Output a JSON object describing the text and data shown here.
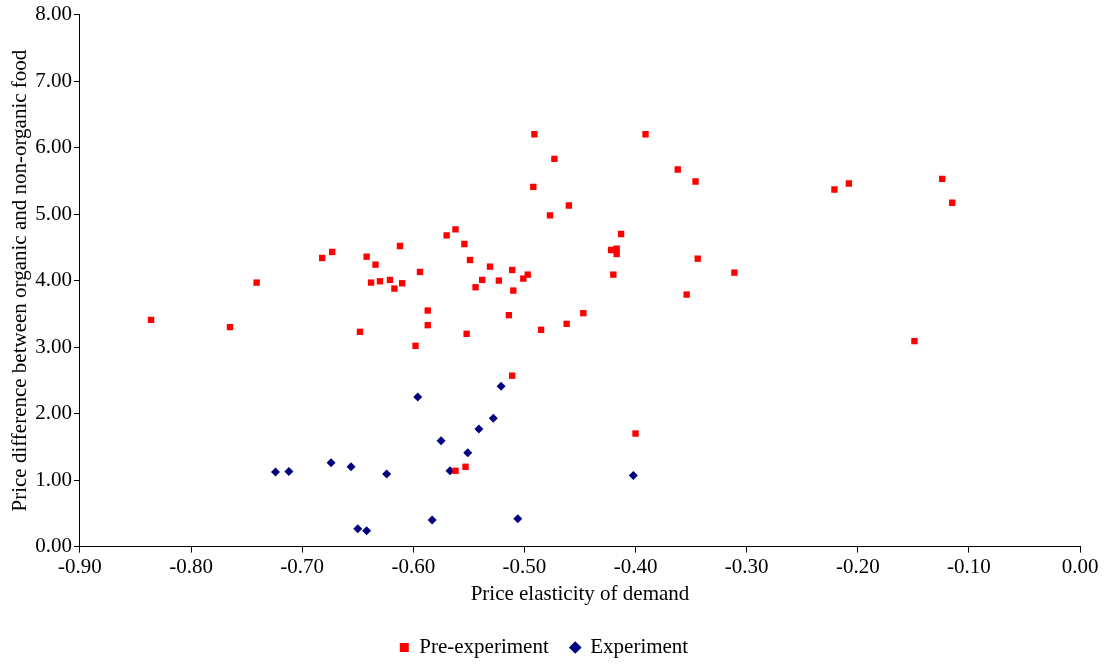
{
  "chart_data": {
    "type": "scatter",
    "xlabel": "Price elasticity of demand",
    "ylabel": "Price difference between organic and non-organic food",
    "legend": "bottom",
    "grid": false,
    "xlim": [
      -0.9,
      0
    ],
    "xticks": [
      {
        "value": -0.9,
        "label": "-0.90"
      },
      {
        "value": -0.8,
        "label": "-0.80"
      },
      {
        "value": -0.7,
        "label": "-0.70"
      },
      {
        "value": -0.6,
        "label": "-0.60"
      },
      {
        "value": -0.5,
        "label": "-0.50"
      },
      {
        "value": -0.4,
        "label": "-0.40"
      },
      {
        "value": -0.3,
        "label": "-0.30"
      },
      {
        "value": -0.2,
        "label": "-0.20"
      },
      {
        "value": -0.1,
        "label": "-0.10"
      },
      {
        "value": 0,
        "label": "0.00"
      }
    ],
    "ylim": [
      0,
      8
    ],
    "yticks": [
      {
        "value": 0,
        "label": "0.00"
      },
      {
        "value": 1,
        "label": "1.00"
      },
      {
        "value": 2,
        "label": "2.00"
      },
      {
        "value": 3,
        "label": "3.00"
      },
      {
        "value": 4,
        "label": "4.00"
      },
      {
        "value": 5,
        "label": "5.00"
      },
      {
        "value": 6,
        "label": "6.00"
      },
      {
        "value": 7,
        "label": "7.00"
      },
      {
        "value": 8,
        "label": "8.00"
      }
    ],
    "series": [
      {
        "name": "Pre-experiment",
        "color": "#ff0000",
        "marker": "square",
        "x": [
          -0.836,
          -0.765,
          -0.741,
          -0.682,
          -0.673,
          -0.648,
          -0.642,
          -0.638,
          -0.634,
          -0.63,
          -0.621,
          -0.617,
          -0.612,
          -0.61,
          -0.598,
          -0.594,
          -0.587,
          -0.587,
          -0.57,
          -0.562,
          -0.562,
          -0.554,
          -0.552,
          -0.553,
          -0.549,
          -0.544,
          -0.538,
          -0.531,
          -0.523,
          -0.514,
          -0.511,
          -0.51,
          -0.511,
          -0.501,
          -0.497,
          -0.492,
          -0.491,
          -0.485,
          -0.477,
          -0.473,
          -0.462,
          -0.46,
          -0.447,
          -0.422,
          -0.42,
          -0.417,
          -0.417,
          -0.413,
          -0.4,
          -0.391,
          -0.362,
          -0.354,
          -0.346,
          -0.344,
          -0.311,
          -0.221,
          -0.208,
          -0.149,
          -0.124,
          -0.115
        ],
        "values": [
          3.41,
          3.3,
          3.97,
          4.34,
          4.43,
          3.23,
          4.36,
          3.97,
          4.24,
          3.99,
          4.01,
          3.88,
          4.52,
          3.96,
          3.02,
          4.13,
          3.55,
          3.33,
          4.68,
          4.77,
          1.14,
          4.55,
          3.2,
          1.2,
          4.31,
          3.9,
          4.01,
          4.21,
          4.0,
          3.48,
          4.16,
          3.85,
          2.57,
          4.03,
          4.09,
          5.41,
          6.2,
          3.26,
          4.98,
          5.83,
          3.35,
          5.13,
          3.51,
          4.46,
          4.09,
          4.48,
          4.4,
          4.7,
          1.7,
          6.2,
          5.67,
          3.79,
          5.49,
          4.33,
          4.12,
          5.37,
          5.46,
          3.09,
          5.53,
          5.17
        ]
      },
      {
        "name": "Experiment",
        "color": "#000080",
        "marker": "diamond",
        "x": [
          -0.724,
          -0.712,
          -0.674,
          -0.656,
          -0.65,
          -0.642,
          -0.624,
          -0.596,
          -0.583,
          -0.575,
          -0.567,
          -0.551,
          -0.541,
          -0.528,
          -0.521,
          -0.506,
          -0.402
        ],
        "values": [
          1.12,
          1.13,
          1.26,
          1.2,
          0.27,
          0.24,
          1.09,
          2.25,
          0.4,
          1.59,
          1.14,
          1.41,
          1.77,
          1.93,
          2.41,
          0.42,
          1.07
        ]
      }
    ]
  }
}
